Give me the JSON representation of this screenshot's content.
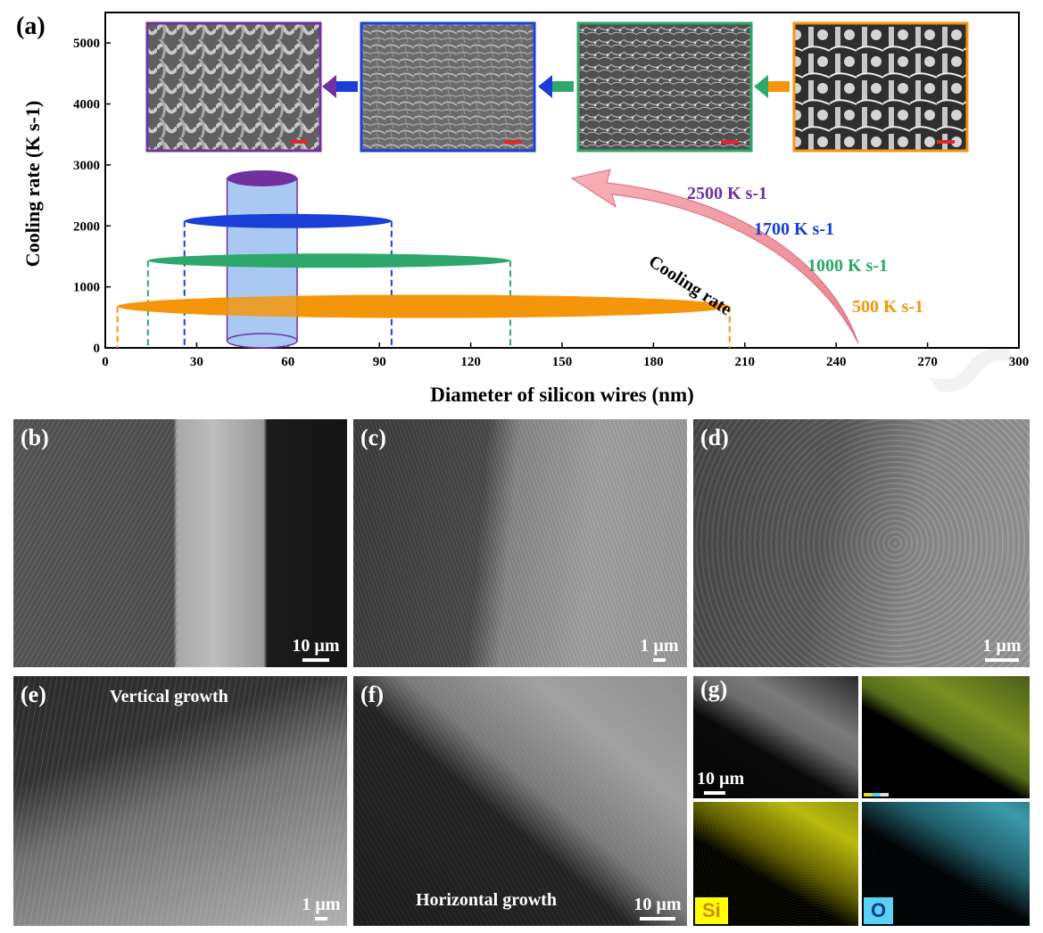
{
  "figure": {
    "panel_a_label": "(a)",
    "panels": [
      {
        "label": "(b)",
        "scale": "10 µm"
      },
      {
        "label": "(c)",
        "scale": "1 µm"
      },
      {
        "label": "(d)",
        "scale": "1 µm"
      },
      {
        "label": "(e)",
        "scale": "1 µm",
        "caption": "Vertical growth"
      },
      {
        "label": "(f)",
        "scale": "10 µm",
        "caption": "Horizontal growth"
      },
      {
        "label": "(g)",
        "scale": "10 µm"
      }
    ],
    "eds": {
      "si_label": "Si",
      "o_label": "O",
      "si_color": "#ffff00",
      "o_color": "#5ad2f4"
    }
  },
  "chart_data": {
    "type": "range",
    "xlabel": "Diameter of silicon wires (nm)",
    "ylabel": "Cooling rate (K s-1)",
    "xlim": [
      0,
      300
    ],
    "ylim": [
      0,
      5500
    ],
    "xticks": [
      0,
      30,
      60,
      90,
      120,
      150,
      180,
      210,
      240,
      270,
      300
    ],
    "yticks": [
      0,
      1000,
      2000,
      3000,
      4000,
      5000
    ],
    "series": [
      {
        "label": "500 K s-1",
        "cooling_rate": 500,
        "diameter_min": 4,
        "diameter_max": 205,
        "y_level": 680,
        "color": "#f5960a"
      },
      {
        "label": "1000 K s-1",
        "cooling_rate": 1000,
        "diameter_min": 14,
        "diameter_max": 133,
        "y_level": 1430,
        "color": "#2ea86a"
      },
      {
        "label": "1700 K s-1",
        "cooling_rate": 1700,
        "diameter_min": 26,
        "diameter_max": 94,
        "y_level": 2080,
        "color": "#1a3fd6"
      },
      {
        "label": "2500 K s-1",
        "cooling_rate": 2500,
        "diameter_min": 40,
        "diameter_max": 63,
        "y_level": 2780,
        "color": "#7030a0"
      }
    ],
    "arrow_label": "Cooling rate"
  }
}
